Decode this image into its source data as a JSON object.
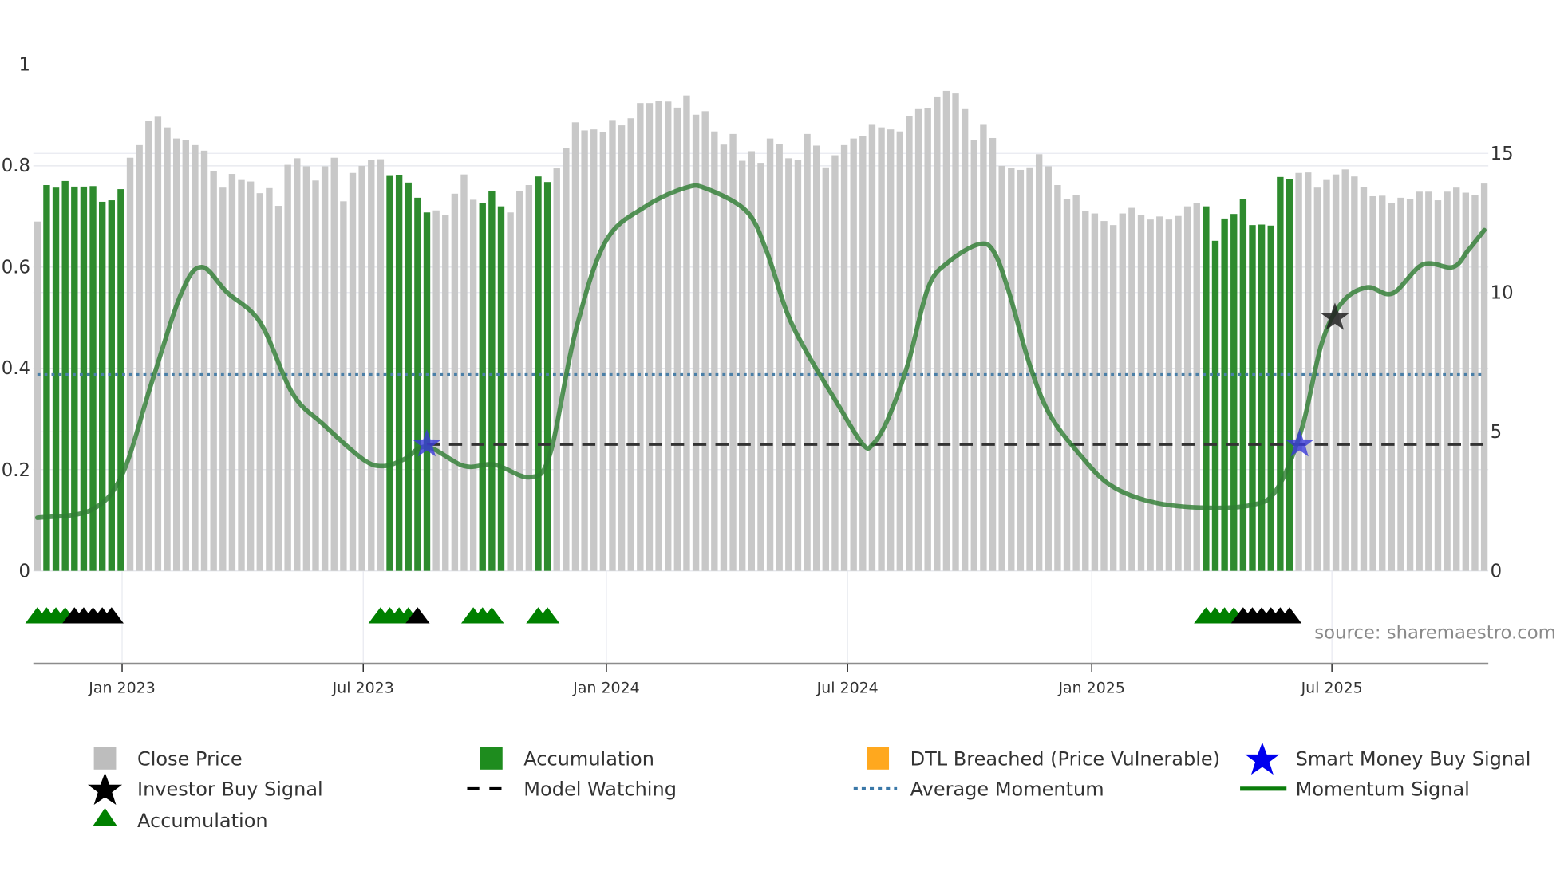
{
  "chart_data": {
    "type": "bar",
    "title": "",
    "xlabel": "",
    "ylabel": "",
    "left_axis": {
      "ticks": [
        "0",
        "0.2",
        "0.4",
        "0.6",
        "0.8",
        "1"
      ],
      "ylim": [
        0,
        1
      ]
    },
    "right_axis": {
      "ticks": [
        "0",
        "5",
        "10",
        "15"
      ],
      "ylim": [
        0,
        18.2
      ]
    },
    "x_ticks": [
      {
        "label": "Jan 2023",
        "x": 121
      },
      {
        "label": "Jul 2023",
        "x": 360
      },
      {
        "label": "Jan 2024",
        "x": 601
      },
      {
        "label": "Jul 2024",
        "x": 840
      },
      {
        "label": "Jan 2025",
        "x": 1082
      },
      {
        "label": "Jul 2025",
        "x": 1320
      }
    ],
    "grid": true,
    "legend_position": "bottom",
    "bar_count": 157,
    "bars_normalized": [
      0.69,
      0.762,
      0.757,
      0.77,
      0.759,
      0.759,
      0.76,
      0.729,
      0.732,
      0.754,
      0.816,
      0.841,
      0.888,
      0.897,
      0.876,
      0.854,
      0.851,
      0.841,
      0.83,
      0.79,
      0.757,
      0.784,
      0.772,
      0.769,
      0.746,
      0.756,
      0.721,
      0.802,
      0.815,
      0.799,
      0.771,
      0.799,
      0.816,
      0.73,
      0.786,
      0.8,
      0.811,
      0.813,
      0.78,
      0.781,
      0.767,
      0.737,
      0.708,
      0.712,
      0.703,
      0.745,
      0.783,
      0.733,
      0.726,
      0.75,
      0.72,
      0.708,
      0.751,
      0.762,
      0.779,
      0.768,
      0.795,
      0.835,
      0.886,
      0.87,
      0.872,
      0.867,
      0.889,
      0.88,
      0.894,
      0.924,
      0.924,
      0.928,
      0.927,
      0.915,
      0.939,
      0.901,
      0.908,
      0.868,
      0.842,
      0.863,
      0.81,
      0.829,
      0.806,
      0.854,
      0.843,
      0.815,
      0.811,
      0.863,
      0.84,
      0.797,
      0.821,
      0.841,
      0.854,
      0.859,
      0.881,
      0.876,
      0.872,
      0.868,
      0.899,
      0.912,
      0.914,
      0.937,
      0.948,
      0.943,
      0.912,
      0.851,
      0.881,
      0.855,
      0.8,
      0.796,
      0.792,
      0.797,
      0.823,
      0.799,
      0.762,
      0.735,
      0.743,
      0.711,
      0.706,
      0.691,
      0.683,
      0.706,
      0.717,
      0.703,
      0.694,
      0.7,
      0.694,
      0.701,
      0.72,
      0.726,
      0.72,
      0.652,
      0.696,
      0.705,
      0.734,
      0.683,
      0.684,
      0.682,
      0.778,
      0.774,
      0.786,
      0.787,
      0.757,
      0.772,
      0.783,
      0.793,
      0.779,
      0.758,
      0.74,
      0.741,
      0.727,
      0.737,
      0.735,
      0.749,
      0.749,
      0.732,
      0.749,
      0.757,
      0.747,
      0.743,
      0.765
    ],
    "accumulation_bar_indices": [
      1,
      2,
      3,
      4,
      5,
      6,
      7,
      8,
      9,
      38,
      39,
      40,
      41,
      42,
      48,
      49,
      50,
      54,
      55,
      126,
      127,
      128,
      129,
      130,
      131,
      132,
      133,
      134,
      135
    ],
    "series": [
      {
        "name": "Momentum Signal",
        "type": "line",
        "points": [
          [
            37,
            0.105
          ],
          [
            90,
            0.12
          ],
          [
            121,
            0.19
          ],
          [
            150,
            0.37
          ],
          [
            180,
            0.55
          ],
          [
            200,
            0.6
          ],
          [
            225,
            0.55
          ],
          [
            258,
            0.49
          ],
          [
            290,
            0.35
          ],
          [
            320,
            0.29
          ],
          [
            360,
            0.22
          ],
          [
            380,
            0.207
          ],
          [
            400,
            0.22
          ],
          [
            423,
            0.245
          ],
          [
            460,
            0.207
          ],
          [
            490,
            0.21
          ],
          [
            525,
            0.185
          ],
          [
            545,
            0.23
          ],
          [
            570,
            0.47
          ],
          [
            600,
            0.65
          ],
          [
            640,
            0.72
          ],
          [
            680,
            0.757
          ],
          [
            700,
            0.755
          ],
          [
            740,
            0.71
          ],
          [
            760,
            0.63
          ],
          [
            780,
            0.51
          ],
          [
            800,
            0.43
          ],
          [
            830,
            0.33
          ],
          [
            855,
            0.25
          ],
          [
            865,
            0.25
          ],
          [
            880,
            0.3
          ],
          [
            900,
            0.41
          ],
          [
            920,
            0.56
          ],
          [
            940,
            0.61
          ],
          [
            970,
            0.645
          ],
          [
            985,
            0.63
          ],
          [
            1000,
            0.55
          ],
          [
            1020,
            0.41
          ],
          [
            1040,
            0.31
          ],
          [
            1070,
            0.23
          ],
          [
            1100,
            0.17
          ],
          [
            1140,
            0.137
          ],
          [
            1190,
            0.125
          ],
          [
            1240,
            0.13
          ],
          [
            1265,
            0.16
          ],
          [
            1290,
            0.28
          ],
          [
            1310,
            0.45
          ],
          [
            1330,
            0.53
          ],
          [
            1355,
            0.56
          ],
          [
            1380,
            0.548
          ],
          [
            1410,
            0.605
          ],
          [
            1440,
            0.6
          ],
          [
            1455,
            0.633
          ],
          [
            1471,
            0.673
          ]
        ]
      },
      {
        "name": "Average Momentum",
        "type": "hline",
        "value": 0.388
      },
      {
        "name": "Model Watching",
        "type": "hline",
        "value": 0.25,
        "x_start": 423
      }
    ],
    "markers": {
      "smart_money_buy": [
        {
          "x": 423,
          "value": 0.25
        },
        {
          "x": 1288,
          "value": 0.25
        }
      ],
      "investor_buy": [
        {
          "x": 1323,
          "value": 0.5
        }
      ],
      "triangle_groups": [
        {
          "start_bar": 0,
          "colors": [
            "g",
            "g",
            "g",
            "g",
            "k",
            "k",
            "k",
            "k",
            "k"
          ]
        },
        {
          "start_bar": 37,
          "colors": [
            "g",
            "g",
            "g",
            "g",
            "k"
          ]
        },
        {
          "start_bar": 47,
          "colors": [
            "g",
            "g",
            "g"
          ]
        },
        {
          "start_bar": 54,
          "colors": [
            "g",
            "g"
          ]
        },
        {
          "start_bar": 126,
          "colors": [
            "g",
            "g",
            "g",
            "g",
            "k",
            "k",
            "k",
            "k",
            "k",
            "k"
          ]
        }
      ]
    },
    "colors": {
      "close_price": "#c8c8c8",
      "accumulation": "#2e8b2e",
      "momentum": "#2e7d32",
      "average_momentum": "#4a7fa7",
      "model_watching": "#333333",
      "smart_money_star": "#0000ee",
      "investor_star": "#000000",
      "dtl_breached": "#ffa500",
      "triangle_green": "#008000",
      "triangle_black": "#000000"
    }
  },
  "axes": {
    "left": [
      "0",
      "0.2",
      "0.4",
      "0.6",
      "0.8",
      "1"
    ],
    "right": [
      "0",
      "5",
      "10",
      "15"
    ],
    "x": [
      "Jan 2023",
      "Jul 2023",
      "Jan 2024",
      "Jul 2024",
      "Jan 2025",
      "Jul 2025"
    ]
  },
  "legend": {
    "close_price": "Close Price",
    "accumulation_bar": "Accumulation",
    "dtl_breached": "DTL Breached (Price Vulnerable)",
    "smart_money_buy": "Smart Money Buy Signal",
    "investor_buy": "Investor Buy Signal",
    "model_watching": "Model Watching",
    "average_momentum": "Average Momentum",
    "momentum_signal": "Momentum Signal",
    "accumulation_triangle": "Accumulation"
  },
  "source": "source: sharemaestro.com"
}
